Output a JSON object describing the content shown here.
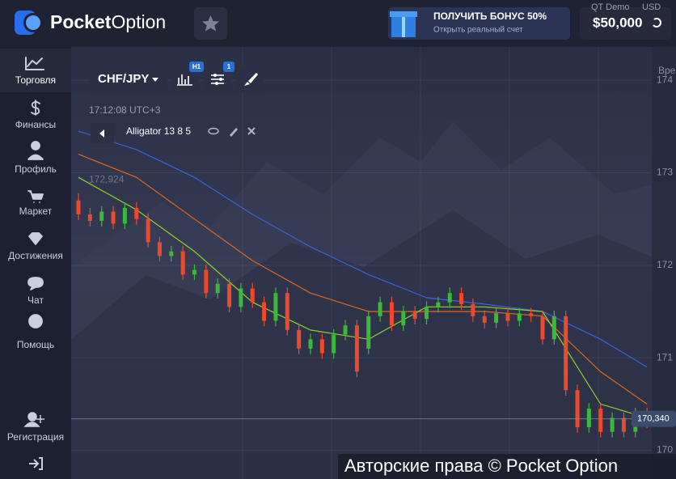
{
  "header": {
    "logo": {
      "first": "Pocket",
      "second": "Option"
    },
    "bonus": {
      "title": "ПОЛУЧИТЬ БОНУС 50%",
      "subtitle": "Открыть реальный счет"
    },
    "account": {
      "type": "QT Demo",
      "currency": "USD",
      "balance": "$50,000"
    }
  },
  "sidebar": {
    "items": [
      "Торговля",
      "Финансы",
      "Профиль",
      "Маркет",
      "Достижения",
      "Чат",
      "Помощь"
    ],
    "bottom_items": [
      "Регистрация"
    ]
  },
  "toolbar": {
    "asset": "CHF/JPY",
    "timeframe_badge": "H1",
    "indicator_badge": "1"
  },
  "chart": {
    "type": "candlestick",
    "time": "17:12:08 UTC+3",
    "indicator": "Alligator 13 8 5",
    "axis_header": "Вре",
    "level": {
      "value": 172.924,
      "label": "172,924"
    },
    "current_price": {
      "value": 170.34,
      "label": "170,340"
    },
    "ylim": [
      169.69,
      174.36
    ],
    "yticks": [
      {
        "value": 174,
        "label": "174"
      },
      173,
      172,
      171,
      170
    ],
    "up_color": "#3cb83a",
    "down_color": "#ec4a2c",
    "candles": [
      [
        172.7,
        172.78,
        172.49,
        172.55
      ],
      [
        172.55,
        172.62,
        172.42,
        172.48
      ],
      [
        172.48,
        172.64,
        172.42,
        172.58
      ],
      [
        172.58,
        172.64,
        172.39,
        172.45
      ],
      [
        172.45,
        172.68,
        172.39,
        172.62
      ],
      [
        172.62,
        172.68,
        172.44,
        172.5
      ],
      [
        172.5,
        172.56,
        172.19,
        172.25
      ],
      [
        172.25,
        172.31,
        172.04,
        172.1
      ],
      [
        172.1,
        172.21,
        172.04,
        172.15
      ],
      [
        172.15,
        172.21,
        171.84,
        171.9
      ],
      [
        171.9,
        172.01,
        171.84,
        171.95
      ],
      [
        171.95,
        172.01,
        171.64,
        171.7
      ],
      [
        171.7,
        171.86,
        171.64,
        171.8
      ],
      [
        171.8,
        171.86,
        171.49,
        171.55
      ],
      [
        171.55,
        171.81,
        171.49,
        171.75
      ],
      [
        171.75,
        171.81,
        171.54,
        171.6
      ],
      [
        171.6,
        171.66,
        171.34,
        171.4
      ],
      [
        171.4,
        171.76,
        171.34,
        171.7
      ],
      [
        171.7,
        171.76,
        171.24,
        171.3
      ],
      [
        171.3,
        171.36,
        171.04,
        171.1
      ],
      [
        171.1,
        171.26,
        171.04,
        171.2
      ],
      [
        171.2,
        171.26,
        170.99,
        171.05
      ],
      [
        171.05,
        171.31,
        170.99,
        171.25
      ],
      [
        171.25,
        171.41,
        171.19,
        171.35
      ],
      [
        171.35,
        171.41,
        170.79,
        170.85
      ],
      [
        171.1,
        171.51,
        171.04,
        171.45
      ],
      [
        171.45,
        171.66,
        171.39,
        171.6
      ],
      [
        171.6,
        171.66,
        171.29,
        171.35
      ],
      [
        171.35,
        171.56,
        171.29,
        171.5
      ],
      [
        171.5,
        171.56,
        171.36,
        171.42
      ],
      [
        171.42,
        171.61,
        171.36,
        171.55
      ],
      [
        171.55,
        171.66,
        171.49,
        171.6
      ],
      [
        171.6,
        171.76,
        171.54,
        171.7
      ],
      [
        171.7,
        171.76,
        171.52,
        171.58
      ],
      [
        171.58,
        171.64,
        171.39,
        171.45
      ],
      [
        171.45,
        171.51,
        171.32,
        171.38
      ],
      [
        171.38,
        171.54,
        171.32,
        171.48
      ],
      [
        171.48,
        171.54,
        171.34,
        171.4
      ],
      [
        171.4,
        171.54,
        171.34,
        171.48
      ],
      [
        171.48,
        171.54,
        171.39,
        171.45
      ],
      [
        171.45,
        171.51,
        171.14,
        171.2
      ],
      [
        171.2,
        171.51,
        171.14,
        171.45
      ],
      [
        171.45,
        171.51,
        170.59,
        170.65
      ],
      [
        170.65,
        170.71,
        170.19,
        170.25
      ],
      [
        170.25,
        170.51,
        170.19,
        170.45
      ],
      [
        170.45,
        170.51,
        170.14,
        170.2
      ],
      [
        170.2,
        170.41,
        170.14,
        170.35
      ],
      [
        170.35,
        170.41,
        170.14,
        170.2
      ],
      [
        170.2,
        170.46,
        170.14,
        170.4
      ],
      [
        170.4,
        170.46,
        170.24,
        170.3
      ]
    ],
    "lines": [
      {
        "color": "#3d63d8",
        "x": [
          0,
          5,
          10,
          15,
          20,
          25,
          30,
          35,
          40,
          45,
          49
        ],
        "values": [
          173.45,
          173.25,
          172.95,
          172.55,
          172.2,
          171.9,
          171.65,
          171.58,
          171.5,
          171.2,
          170.9
        ]
      },
      {
        "color": "#e0671f",
        "x": [
          0,
          5,
          10,
          15,
          20,
          25,
          30,
          35,
          40,
          45,
          49
        ],
        "values": [
          173.2,
          172.95,
          172.5,
          172.05,
          171.7,
          171.5,
          171.5,
          171.5,
          171.45,
          170.85,
          170.5
        ]
      },
      {
        "color": "#8fd12b",
        "x": [
          0,
          5,
          10,
          15,
          20,
          25,
          30,
          35,
          40,
          45,
          49
        ],
        "values": [
          172.95,
          172.6,
          172.15,
          171.6,
          171.3,
          171.2,
          171.55,
          171.55,
          171.5,
          170.5,
          170.35
        ]
      }
    ]
  },
  "watermark": "Авторские права © Pocket Option"
}
